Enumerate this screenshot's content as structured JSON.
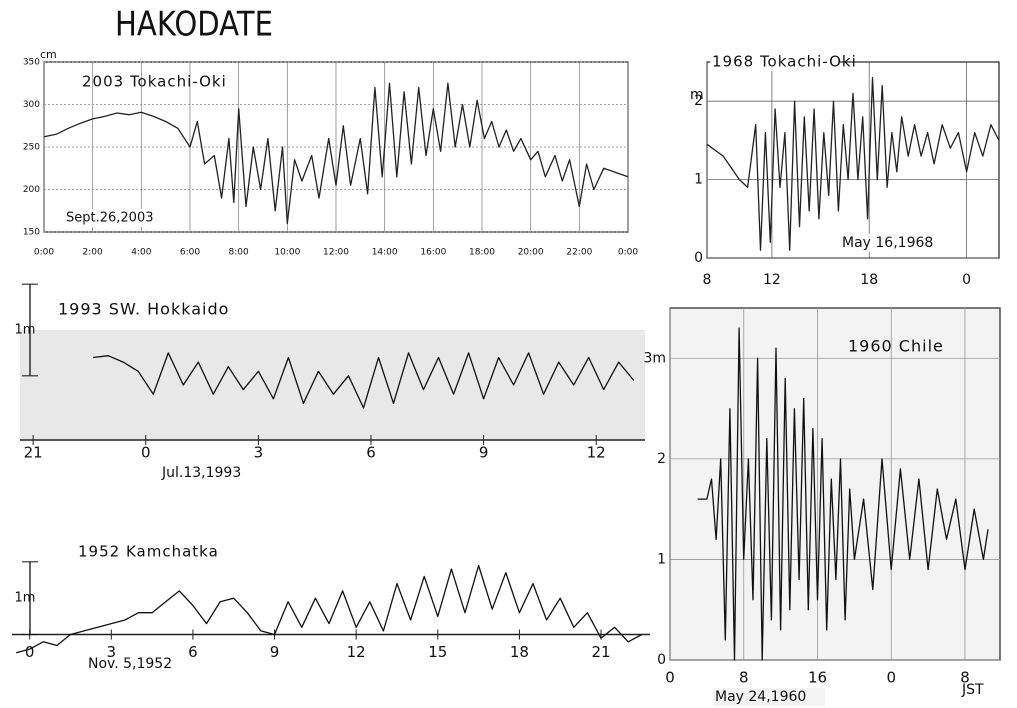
{
  "header": {
    "title": "HAKODATE"
  },
  "chart_data": [
    {
      "type": "line",
      "title": "2003 Tokachi-Oki",
      "annotation": "Sept.26,2003",
      "y_label": "cm",
      "color": "#222",
      "grid": true,
      "x": [
        0,
        0.5,
        1,
        1.5,
        2,
        2.5,
        3,
        3.5,
        4,
        4.5,
        5,
        5.5,
        6,
        6.3,
        6.6,
        7,
        7.3,
        7.6,
        7.8,
        8,
        8.3,
        8.6,
        8.9,
        9.2,
        9.5,
        9.8,
        10,
        10.3,
        10.6,
        11,
        11.3,
        11.7,
        12,
        12.3,
        12.6,
        13,
        13.3,
        13.6,
        13.9,
        14.2,
        14.5,
        14.8,
        15.1,
        15.4,
        15.7,
        16,
        16.3,
        16.6,
        16.9,
        17.2,
        17.5,
        17.8,
        18.1,
        18.4,
        18.7,
        19,
        19.3,
        19.6,
        20,
        20.3,
        20.6,
        21,
        21.3,
        21.6,
        22,
        22.3,
        22.6,
        23,
        23.5,
        24
      ],
      "values": [
        262,
        265,
        272,
        278,
        283,
        286,
        290,
        288,
        291,
        286,
        280,
        272,
        250,
        280,
        230,
        240,
        190,
        260,
        185,
        295,
        180,
        250,
        200,
        260,
        175,
        250,
        160,
        235,
        210,
        240,
        190,
        260,
        205,
        275,
        205,
        260,
        195,
        320,
        215,
        325,
        215,
        315,
        230,
        320,
        240,
        295,
        245,
        325,
        250,
        300,
        250,
        305,
        260,
        280,
        250,
        270,
        245,
        260,
        235,
        245,
        215,
        240,
        210,
        235,
        180,
        230,
        200,
        225,
        220,
        215
      ],
      "xlim": [
        0,
        24
      ],
      "ylim": [
        150,
        350
      ],
      "xticks": [
        {
          "value": 0,
          "label": "0:00"
        },
        {
          "value": 2,
          "label": "2:00"
        },
        {
          "value": 4,
          "label": "4:00"
        },
        {
          "value": 6,
          "label": "6:00"
        },
        {
          "value": 8,
          "label": "8:00"
        },
        {
          "value": 10,
          "label": "10:00"
        },
        {
          "value": 12,
          "label": "12:00"
        },
        {
          "value": 14,
          "label": "14:00"
        },
        {
          "value": 16,
          "label": "16:00"
        },
        {
          "value": 18,
          "label": "18:00"
        },
        {
          "value": 20,
          "label": "20:00"
        },
        {
          "value": 22,
          "label": "22:00"
        },
        {
          "value": 24,
          "label": "0:00"
        }
      ],
      "yticks": [
        150,
        200,
        250,
        300,
        350
      ]
    },
    {
      "type": "line",
      "title": "1968 Tokachi-Oki",
      "annotation": "May 16,1968",
      "y_label": "m",
      "color": "#222",
      "grid": true,
      "x": [
        8,
        9,
        10,
        10.5,
        11,
        11.3,
        11.6,
        11.9,
        12.2,
        12.5,
        12.8,
        13.1,
        13.4,
        13.7,
        14,
        14.3,
        14.6,
        14.9,
        15.2,
        15.5,
        15.8,
        16.1,
        16.4,
        16.7,
        17,
        17.3,
        17.6,
        17.9,
        18.2,
        18.5,
        18.8,
        19.1,
        19.4,
        19.7,
        20,
        20.4,
        20.8,
        21.2,
        21.6,
        22,
        22.5,
        23,
        23.5,
        24,
        24.5,
        25,
        25.5,
        26
      ],
      "values": [
        1.45,
        1.3,
        1.0,
        0.9,
        1.7,
        0.1,
        1.6,
        0.2,
        1.9,
        0.9,
        1.6,
        0.1,
        2.0,
        0.4,
        1.8,
        0.6,
        1.9,
        0.5,
        1.6,
        0.8,
        2.0,
        0.6,
        1.7,
        1.0,
        2.1,
        1.0,
        1.8,
        0.5,
        2.3,
        1.0,
        2.2,
        0.9,
        1.6,
        1.1,
        1.8,
        1.3,
        1.7,
        1.3,
        1.6,
        1.2,
        1.7,
        1.4,
        1.6,
        1.1,
        1.6,
        1.3,
        1.7,
        1.5
      ],
      "xlim": [
        8,
        26
      ],
      "ylim": [
        0,
        2.5
      ],
      "xticks": [
        8,
        12,
        18,
        {
          "value": 24,
          "label": "0"
        }
      ],
      "yticks": [
        0,
        1,
        2
      ]
    },
    {
      "type": "line",
      "title": "1993 SW. Hokkaido",
      "annotation": "Jul.13,1993",
      "color": "#111",
      "scale_bar": {
        "label": "1m",
        "value": 1
      },
      "x": [
        22.6,
        23.0,
        23.4,
        23.8,
        24.2,
        24.6,
        25.0,
        25.4,
        25.8,
        26.2,
        26.6,
        27.0,
        27.4,
        27.8,
        28.2,
        28.6,
        29.0,
        29.4,
        29.8,
        30.2,
        30.6,
        31.0,
        31.4,
        31.8,
        32.2,
        32.6,
        33.0,
        33.4,
        33.8,
        34.2,
        34.6,
        35.0,
        35.4,
        35.8,
        36.2,
        36.6,
        37.0
      ],
      "values": [
        0.2,
        0.22,
        0.15,
        0.05,
        -0.2,
        0.25,
        -0.1,
        0.15,
        -0.2,
        0.1,
        -0.15,
        0.05,
        -0.25,
        0.2,
        -0.3,
        0.05,
        -0.2,
        0.0,
        -0.35,
        0.2,
        -0.3,
        0.25,
        -0.15,
        0.2,
        -0.2,
        0.25,
        -0.25,
        0.2,
        -0.1,
        0.25,
        -0.2,
        0.15,
        -0.1,
        0.2,
        -0.15,
        0.15,
        -0.05
      ],
      "xlim": [
        20.65,
        37.3
      ],
      "ylim": [
        -0.7,
        0.5
      ],
      "xticks": [
        21,
        {
          "value": 24,
          "label": "0"
        },
        {
          "value": 27,
          "label": "3"
        },
        {
          "value": 30,
          "label": "6"
        },
        {
          "value": 33,
          "label": "9"
        },
        {
          "value": 36,
          "label": "12"
        }
      ]
    },
    {
      "type": "line",
      "title": "1952 Kamchatka",
      "annotation": "Nov. 5,1952",
      "color": "#111",
      "scale_bar": {
        "label": "1m",
        "value": 1
      },
      "x": [
        -0.5,
        0,
        0.5,
        1,
        1.5,
        2,
        2.5,
        3,
        3.5,
        4,
        4.5,
        5,
        5.5,
        6,
        6.5,
        7,
        7.5,
        8,
        8.5,
        9,
        9.5,
        10,
        10.5,
        11,
        11.5,
        12,
        12.5,
        13,
        13.5,
        14,
        14.5,
        15,
        15.5,
        16,
        16.5,
        17,
        17.5,
        18,
        18.5,
        19,
        19.5,
        20,
        20.5,
        21,
        21.5,
        22,
        22.5
      ],
      "values": [
        -0.25,
        -0.2,
        -0.1,
        -0.15,
        0.0,
        0.05,
        0.1,
        0.15,
        0.2,
        0.3,
        0.3,
        0.45,
        0.6,
        0.4,
        0.15,
        0.45,
        0.5,
        0.3,
        0.05,
        0.0,
        0.45,
        0.1,
        0.5,
        0.15,
        0.6,
        0.1,
        0.45,
        0.05,
        0.7,
        0.2,
        0.8,
        0.25,
        0.9,
        0.3,
        0.95,
        0.35,
        0.85,
        0.3,
        0.7,
        0.2,
        0.5,
        0.1,
        0.3,
        -0.05,
        0.1,
        -0.1,
        0.0
      ],
      "xlim": [
        -0.65,
        22.8
      ],
      "ylim": [
        -0.35,
        1.3
      ],
      "xticks": [
        0,
        3,
        6,
        9,
        12,
        15,
        18,
        21
      ]
    },
    {
      "type": "line",
      "title": "1960 Chile",
      "annotation": "May 24,1960",
      "x_label": "JST",
      "color": "#111",
      "grid": true,
      "x": [
        3,
        4,
        4.5,
        5,
        5.5,
        6,
        6.5,
        7,
        7.5,
        8,
        8.5,
        9,
        9.5,
        10,
        10.5,
        11,
        11.5,
        12,
        12.5,
        13,
        13.5,
        14,
        14.5,
        15,
        15.5,
        16,
        16.5,
        17,
        17.5,
        18,
        18.5,
        19,
        19.5,
        20,
        21,
        22,
        23,
        24,
        25,
        26,
        27,
        28,
        29,
        30,
        31,
        32,
        33,
        34,
        34.5
      ],
      "values": [
        1.6,
        1.6,
        1.8,
        1.2,
        2.0,
        0.2,
        2.5,
        0.0,
        3.3,
        1.0,
        2.0,
        0.6,
        3.0,
        0.0,
        2.2,
        0.4,
        3.1,
        0.3,
        2.8,
        0.5,
        2.5,
        0.8,
        2.6,
        0.5,
        2.3,
        0.6,
        2.2,
        0.3,
        1.8,
        0.8,
        2.0,
        0.4,
        1.7,
        1.0,
        1.6,
        0.7,
        2.0,
        0.9,
        1.9,
        1.0,
        1.8,
        0.9,
        1.7,
        1.2,
        1.6,
        0.9,
        1.5,
        1.0,
        1.3
      ],
      "xlim": [
        0,
        35.8
      ],
      "ylim": [
        0,
        3.5
      ],
      "xticks": [
        0,
        8,
        16,
        {
          "value": 24,
          "label": "0"
        },
        {
          "value": 32,
          "label": "8"
        }
      ],
      "yticks": [
        0,
        1,
        2,
        {
          "value": 3,
          "label": "3m"
        }
      ]
    }
  ]
}
